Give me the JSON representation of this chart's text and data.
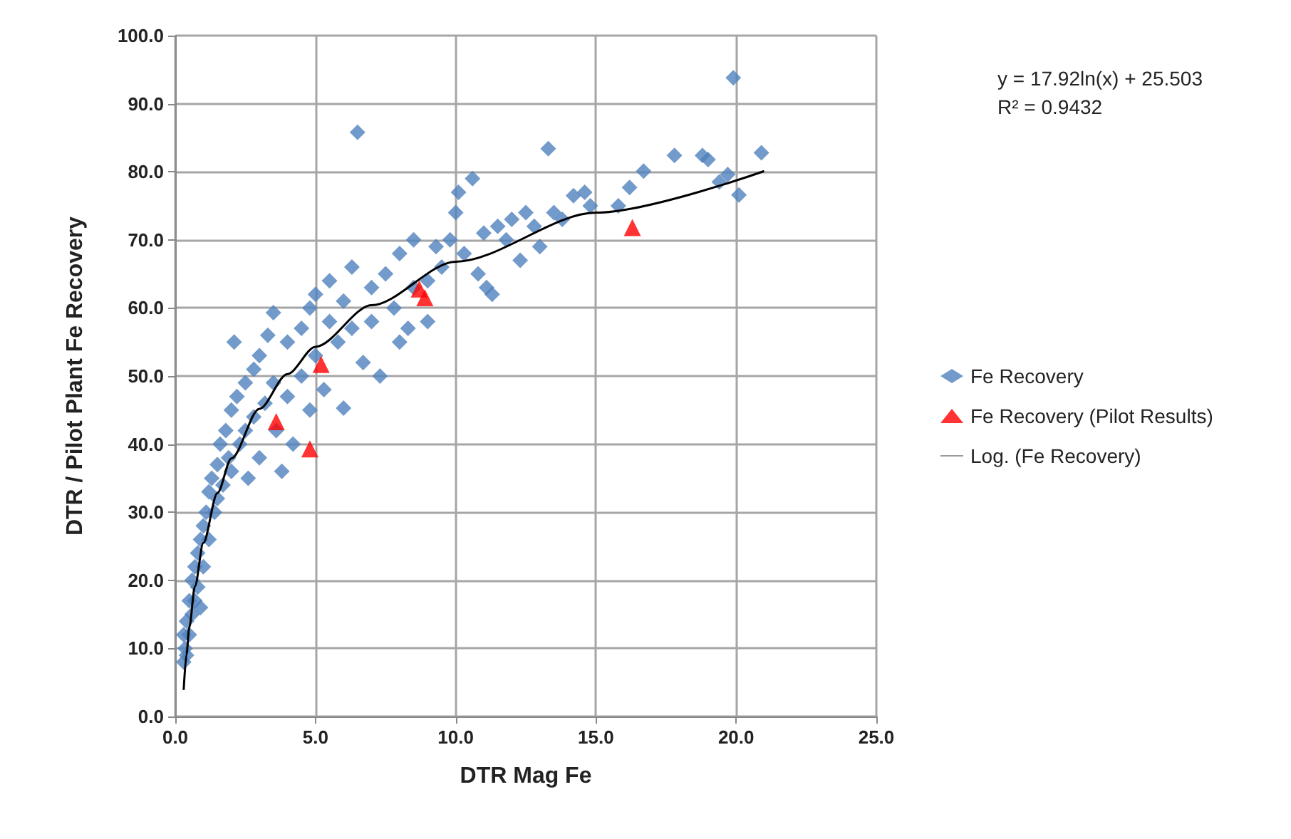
{
  "chart_data": {
    "type": "scatter",
    "xlabel": "DTR Mag Fe",
    "ylabel": "DTR / Pilot Plant Fe Recovery",
    "annotations": [
      "y = 17.92ln(x) + 25.503",
      "R² = 0.9432"
    ],
    "xlim": [
      0,
      25
    ],
    "ylim": [
      0,
      100
    ],
    "xticks": [
      {
        "value": 0,
        "label": "0.0"
      },
      {
        "value": 5,
        "label": "5.0"
      },
      {
        "value": 10,
        "label": "10.0"
      },
      {
        "value": 15,
        "label": "15.0"
      },
      {
        "value": 20,
        "label": "20.0"
      },
      {
        "value": 25,
        "label": "25.0"
      }
    ],
    "yticks": [
      {
        "value": 0,
        "label": "0.0"
      },
      {
        "value": 10,
        "label": "10.0"
      },
      {
        "value": 20,
        "label": "20.0"
      },
      {
        "value": 30,
        "label": "30.0"
      },
      {
        "value": 40,
        "label": "40.0"
      },
      {
        "value": 50,
        "label": "50.0"
      },
      {
        "value": 60,
        "label": "60.0"
      },
      {
        "value": 70,
        "label": "70.0"
      },
      {
        "value": 80,
        "label": "80.0"
      },
      {
        "value": 90,
        "label": "90.0"
      },
      {
        "value": 100,
        "label": "100.0"
      }
    ],
    "grid": true,
    "legend": "right",
    "series": [
      {
        "name": "Fe Recovery",
        "color": "#4f81bd",
        "marker": "diamond",
        "x": [
          0.3,
          0.3,
          0.35,
          0.4,
          0.4,
          0.5,
          0.5,
          0.6,
          0.6,
          0.7,
          0.7,
          0.8,
          0.8,
          0.9,
          0.9,
          1.0,
          1.0,
          1.1,
          1.2,
          1.2,
          1.3,
          1.4,
          1.5,
          1.5,
          1.6,
          1.7,
          1.8,
          1.9,
          2.0,
          2.0,
          2.1,
          2.2,
          2.3,
          2.5,
          2.5,
          2.6,
          2.8,
          2.8,
          3.0,
          3.0,
          3.2,
          3.3,
          3.5,
          3.5,
          3.6,
          3.8,
          4.0,
          4.0,
          4.2,
          4.5,
          4.5,
          4.8,
          4.8,
          5.0,
          5.0,
          5.3,
          5.5,
          5.5,
          5.8,
          6.0,
          6.0,
          6.3,
          6.3,
          6.5,
          6.7,
          7.0,
          7.0,
          7.3,
          7.5,
          7.8,
          8.0,
          8.0,
          8.3,
          8.5,
          8.5,
          9.0,
          9.0,
          9.3,
          9.5,
          9.8,
          10.0,
          10.1,
          10.3,
          10.6,
          10.8,
          11.0,
          11.1,
          11.3,
          11.5,
          11.8,
          12.0,
          12.3,
          12.5,
          12.8,
          13.0,
          13.3,
          13.5,
          13.8,
          14.2,
          14.6,
          14.8,
          15.8,
          16.2,
          16.7,
          17.8,
          18.8,
          19.0,
          19.4,
          19.7,
          20.1,
          19.9,
          20.9
        ],
        "values": [
          8,
          12,
          10,
          14,
          9,
          17,
          12,
          20,
          15,
          22,
          17,
          24,
          19,
          26,
          16,
          28,
          22,
          30,
          33,
          26,
          35,
          30,
          37,
          32,
          40,
          34,
          42,
          38,
          45,
          36,
          55,
          47,
          40,
          49,
          42,
          35,
          51,
          44,
          53,
          38,
          46,
          56,
          59.3,
          49,
          42,
          36,
          55,
          47,
          40,
          57,
          50,
          60,
          45,
          62,
          53,
          48,
          58,
          64,
          55,
          45.3,
          61,
          66,
          57,
          85.8,
          52,
          63,
          58,
          50,
          65,
          60,
          68,
          55,
          57,
          70,
          63,
          64,
          58,
          69,
          66,
          70,
          74,
          77,
          68,
          79,
          65,
          71,
          63,
          62,
          72,
          70,
          73,
          67,
          74,
          72,
          69,
          83.4,
          74,
          73,
          76.5,
          77,
          75,
          75,
          77.7,
          80.1,
          82.4,
          82.4,
          81.8,
          78.5,
          79.6,
          76.6,
          93.8,
          82.8
        ]
      },
      {
        "name": "Fe Recovery (Pilot Results)",
        "color": "#ff0000",
        "marker": "triangle",
        "x": [
          3.6,
          4.8,
          5.2,
          8.7,
          8.9,
          16.3
        ],
        "values": [
          43.3,
          39.3,
          51.7,
          62.8,
          61.5,
          71.8
        ]
      },
      {
        "name": "Log. (Fe Recovery)",
        "type": "line",
        "color": "#000000",
        "marker": "none",
        "line_style": "solid",
        "x": [
          0.3,
          0.4,
          0.5,
          0.7,
          1,
          1.5,
          2,
          3,
          4,
          5,
          7,
          10,
          15,
          21
        ],
        "values": [
          3.9,
          9.1,
          13.1,
          19.1,
          25.5,
          32.8,
          37.9,
          45.2,
          50.3,
          54.3,
          60.4,
          66.8,
          74.0,
          80.1
        ]
      }
    ]
  }
}
